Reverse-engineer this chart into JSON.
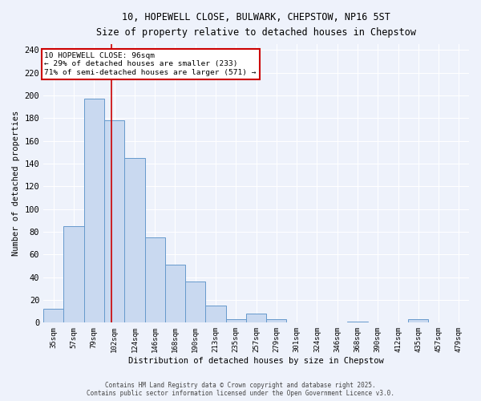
{
  "title_line1": "10, HOPEWELL CLOSE, BULWARK, CHEPSTOW, NP16 5ST",
  "title_line2": "Size of property relative to detached houses in Chepstow",
  "xlabel": "Distribution of detached houses by size in Chepstow",
  "ylabel": "Number of detached properties",
  "categories": [
    "35sqm",
    "57sqm",
    "79sqm",
    "102sqm",
    "124sqm",
    "146sqm",
    "168sqm",
    "190sqm",
    "213sqm",
    "235sqm",
    "257sqm",
    "279sqm",
    "301sqm",
    "324sqm",
    "346sqm",
    "368sqm",
    "390sqm",
    "412sqm",
    "435sqm",
    "457sqm",
    "479sqm"
  ],
  "values": [
    12,
    85,
    197,
    178,
    145,
    75,
    51,
    36,
    15,
    3,
    8,
    3,
    0,
    0,
    0,
    1,
    0,
    0,
    3,
    0,
    0
  ],
  "bar_color": "#c9d9f0",
  "bar_edge_color": "#6699cc",
  "bg_color": "#eef2fb",
  "grid_color": "#ffffff",
  "vline_color": "#cc0000",
  "vline_x_index": 2.85,
  "annotation_title": "10 HOPEWELL CLOSE: 96sqm",
  "annotation_line2": "← 29% of detached houses are smaller (233)",
  "annotation_line3": "71% of semi-detached houses are larger (571) →",
  "annotation_box_color": "white",
  "annotation_box_edge": "#cc0000",
  "ylim": [
    0,
    245
  ],
  "yticks": [
    0,
    20,
    40,
    60,
    80,
    100,
    120,
    140,
    160,
    180,
    200,
    220,
    240
  ],
  "footer_line1": "Contains HM Land Registry data © Crown copyright and database right 2025.",
  "footer_line2": "Contains public sector information licensed under the Open Government Licence v3.0."
}
